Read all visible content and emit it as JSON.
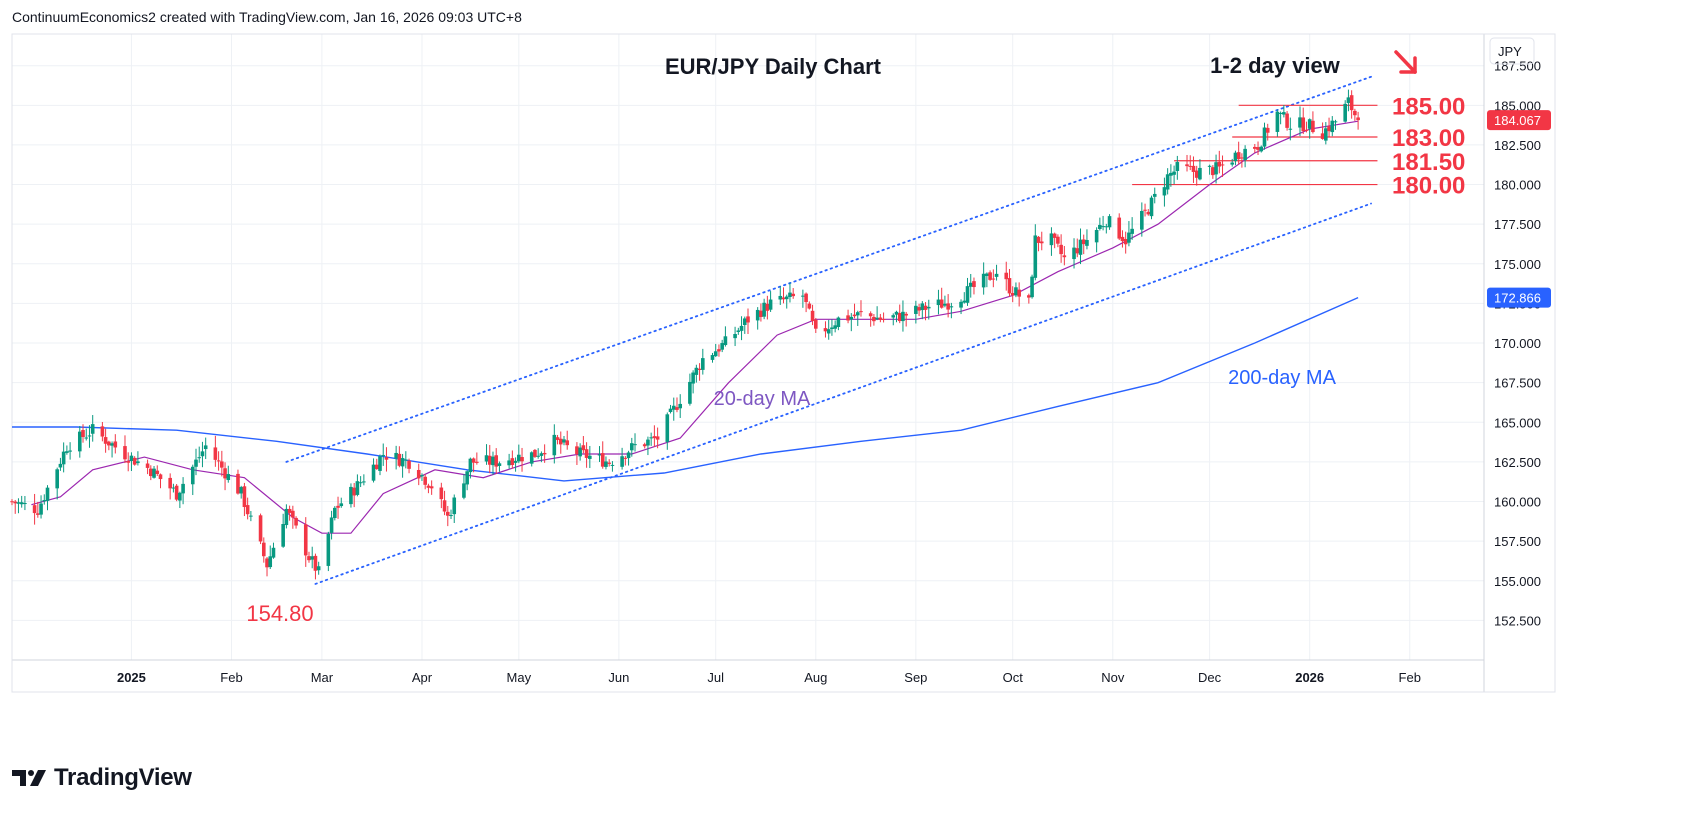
{
  "header": {
    "attribution": "ContinuumEconomics2 created with TradingView.com, Jan 16, 2026 09:03 UTC+8"
  },
  "brand": {
    "logo_text": "TradingView",
    "logo_icon": "tradingview-logo-icon"
  },
  "colors": {
    "up": "#089981",
    "down": "#f23645",
    "ma20": "#9c27b0",
    "ma200": "#2962ff",
    "channel": "#2962ff",
    "level_line": "#f23645",
    "level_text": "#f23645",
    "annotation_purple": "#7e57c2",
    "annotation_blue": "#2962ff",
    "grid": "#eef1f5",
    "axis_text": "#131722"
  },
  "chart_data": {
    "type": "candlestick",
    "title": "EUR/JPY Daily Chart",
    "subtitle": "1-2 day view",
    "currency": "JPY",
    "ylim": [
      150.0,
      189.5
    ],
    "y_ticks": [
      "152.500",
      "155.000",
      "157.500",
      "160.000",
      "162.500",
      "165.000",
      "167.500",
      "170.000",
      "172.500",
      "175.000",
      "177.500",
      "180.000",
      "182.500",
      "185.000",
      "187.500"
    ],
    "x_start_date": "2024-11-25",
    "x_end_date": "2026-02-24",
    "x_tick_labels": [
      {
        "label": "2025",
        "date": "2025-01-01",
        "bold": true
      },
      {
        "label": "Feb",
        "date": "2025-02-01",
        "bold": false
      },
      {
        "label": "Mar",
        "date": "2025-03-01",
        "bold": false
      },
      {
        "label": "Apr",
        "date": "2025-04-01",
        "bold": false
      },
      {
        "label": "May",
        "date": "2025-05-01",
        "bold": false
      },
      {
        "label": "Jun",
        "date": "2025-06-01",
        "bold": false
      },
      {
        "label": "Jul",
        "date": "2025-07-01",
        "bold": false
      },
      {
        "label": "Aug",
        "date": "2025-08-01",
        "bold": false
      },
      {
        "label": "Sep",
        "date": "2025-09-01",
        "bold": false
      },
      {
        "label": "Oct",
        "date": "2025-10-01",
        "bold": false
      },
      {
        "label": "Nov",
        "date": "2025-11-01",
        "bold": false
      },
      {
        "label": "Dec",
        "date": "2025-12-01",
        "bold": false
      },
      {
        "label": "2026",
        "date": "2026-01-01",
        "bold": true
      },
      {
        "label": "Feb",
        "date": "2026-02-01",
        "bold": false
      }
    ],
    "price_path": [
      [
        "2024-11-25",
        160.0
      ],
      [
        "2024-12-03",
        159.5
      ],
      [
        "2024-12-12",
        163.5
      ],
      [
        "2024-12-20",
        164.5
      ],
      [
        "2024-12-30",
        163.0
      ],
      [
        "2025-01-07",
        162.0
      ],
      [
        "2025-01-15",
        160.5
      ],
      [
        "2025-01-24",
        163.5
      ],
      [
        "2025-02-04",
        160.5
      ],
      [
        "2025-02-12",
        156.0
      ],
      [
        "2025-02-18",
        159.5
      ],
      [
        "2025-02-25",
        156.5
      ],
      [
        "2025-02-28",
        155.5
      ],
      [
        "2025-03-05",
        159.5
      ],
      [
        "2025-03-12",
        161.0
      ],
      [
        "2025-03-20",
        163.0
      ],
      [
        "2025-03-28",
        162.5
      ],
      [
        "2025-04-04",
        161.0
      ],
      [
        "2025-04-09",
        159.0
      ],
      [
        "2025-04-16",
        162.5
      ],
      [
        "2025-04-24",
        162.5
      ],
      [
        "2025-04-30",
        162.8
      ],
      [
        "2025-05-06",
        163.0
      ],
      [
        "2025-05-12",
        163.8
      ],
      [
        "2025-05-20",
        163.0
      ],
      [
        "2025-05-29",
        162.5
      ],
      [
        "2025-06-06",
        163.5
      ],
      [
        "2025-06-13",
        164.0
      ],
      [
        "2025-06-20",
        166.5
      ],
      [
        "2025-06-27",
        169.0
      ],
      [
        "2025-07-04",
        170.0
      ],
      [
        "2025-07-11",
        171.5
      ],
      [
        "2025-07-18",
        172.5
      ],
      [
        "2025-07-28",
        173.0
      ],
      [
        "2025-08-01",
        170.5
      ],
      [
        "2025-08-08",
        171.5
      ],
      [
        "2025-08-15",
        171.8
      ],
      [
        "2025-08-22",
        171.5
      ],
      [
        "2025-08-29",
        171.8
      ],
      [
        "2025-09-05",
        172.3
      ],
      [
        "2025-09-12",
        172.6
      ],
      [
        "2025-09-19",
        173.5
      ],
      [
        "2025-09-26",
        174.5
      ],
      [
        "2025-09-30",
        173.5
      ],
      [
        "2025-10-06",
        172.5
      ],
      [
        "2025-10-08",
        176.5
      ],
      [
        "2025-10-13",
        176.5
      ],
      [
        "2025-10-17",
        175.3
      ],
      [
        "2025-10-24",
        176.5
      ],
      [
        "2025-10-30",
        177.8
      ],
      [
        "2025-11-05",
        176.5
      ],
      [
        "2025-11-12",
        178.5
      ],
      [
        "2025-11-18",
        180.5
      ],
      [
        "2025-11-21",
        181.0
      ],
      [
        "2025-11-27",
        180.8
      ],
      [
        "2025-12-04",
        181.0
      ],
      [
        "2025-12-10",
        182.0
      ],
      [
        "2025-12-16",
        182.5
      ],
      [
        "2025-12-22",
        184.5
      ],
      [
        "2025-12-26",
        183.8
      ],
      [
        "2025-12-31",
        183.8
      ],
      [
        "2026-01-05",
        183.3
      ],
      [
        "2026-01-09",
        184.0
      ],
      [
        "2026-01-13",
        185.2
      ],
      [
        "2026-01-16",
        184.067
      ]
    ],
    "sma20_path": [
      [
        "2024-12-01",
        159.8
      ],
      [
        "2024-12-10",
        160.3
      ],
      [
        "2024-12-20",
        162.0
      ],
      [
        "2025-01-05",
        162.8
      ],
      [
        "2025-01-20",
        162.0
      ],
      [
        "2025-02-05",
        161.5
      ],
      [
        "2025-02-20",
        159.0
      ],
      [
        "2025-03-01",
        158.0
      ],
      [
        "2025-03-10",
        158.0
      ],
      [
        "2025-03-20",
        160.5
      ],
      [
        "2025-04-05",
        162.0
      ],
      [
        "2025-04-20",
        161.5
      ],
      [
        "2025-05-05",
        162.5
      ],
      [
        "2025-05-20",
        163.0
      ],
      [
        "2025-06-05",
        163.0
      ],
      [
        "2025-06-20",
        164.0
      ],
      [
        "2025-07-05",
        167.5
      ],
      [
        "2025-07-20",
        170.5
      ],
      [
        "2025-08-01",
        171.5
      ],
      [
        "2025-08-15",
        171.5
      ],
      [
        "2025-09-01",
        171.5
      ],
      [
        "2025-09-15",
        172.0
      ],
      [
        "2025-10-01",
        173.0
      ],
      [
        "2025-10-15",
        174.5
      ],
      [
        "2025-11-01",
        176.0
      ],
      [
        "2025-11-15",
        177.5
      ],
      [
        "2025-12-01",
        180.0
      ],
      [
        "2025-12-15",
        182.0
      ],
      [
        "2026-01-01",
        183.5
      ],
      [
        "2026-01-16",
        184.0
      ]
    ],
    "sma200_path": [
      [
        "2024-11-25",
        164.7
      ],
      [
        "2024-12-15",
        164.7
      ],
      [
        "2025-01-15",
        164.5
      ],
      [
        "2025-02-15",
        163.8
      ],
      [
        "2025-03-15",
        163.0
      ],
      [
        "2025-04-15",
        162.0
      ],
      [
        "2025-05-15",
        161.3
      ],
      [
        "2025-06-15",
        161.8
      ],
      [
        "2025-07-15",
        163.0
      ],
      [
        "2025-08-15",
        163.8
      ],
      [
        "2025-09-15",
        164.5
      ],
      [
        "2025-10-15",
        166.0
      ],
      [
        "2025-11-15",
        167.5
      ],
      [
        "2025-12-15",
        170.0
      ],
      [
        "2026-01-16",
        172.866
      ]
    ],
    "price_badges": [
      {
        "label": "184.067",
        "value": 184.067,
        "color": "#f23645"
      },
      {
        "label": "172.866",
        "value": 172.866,
        "color": "#2962ff"
      }
    ],
    "channel_lines": [
      {
        "x1": "2025-02-18",
        "y1": 162.5,
        "x2": "2026-01-20",
        "y2": 186.8
      },
      {
        "x1": "2025-02-27",
        "y1": 154.8,
        "x2": "2026-01-20",
        "y2": 178.8
      }
    ],
    "horizontal_levels": [
      {
        "label": "185.00",
        "value": 185.0,
        "start": "2025-12-10"
      },
      {
        "label": "183.00",
        "value": 183.0,
        "start": "2025-12-08"
      },
      {
        "label": "181.50",
        "value": 181.5,
        "start": "2025-11-20"
      },
      {
        "label": "180.00",
        "value": 180.0,
        "start": "2025-11-07"
      }
    ],
    "annotations": [
      {
        "text": "154.80",
        "role": "low-label"
      },
      {
        "text": "20-day MA",
        "role": "ma20-label"
      },
      {
        "text": "200-day MA",
        "role": "ma200-label"
      }
    ],
    "grid": true,
    "legend": "none"
  }
}
